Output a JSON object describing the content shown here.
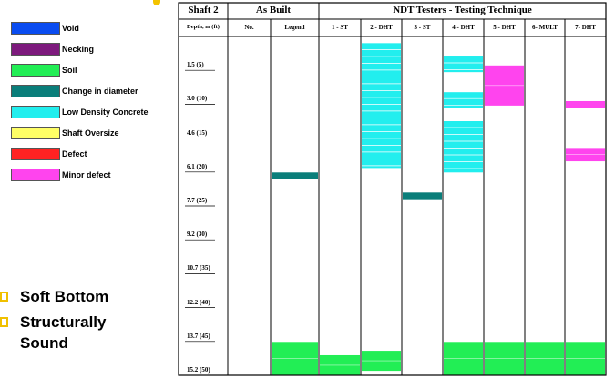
{
  "legend": [
    {
      "label": "Void",
      "color": "#0a4cf0"
    },
    {
      "label": "Necking",
      "color": "#7d1a7d"
    },
    {
      "label": "Soil",
      "color": "#22ee55"
    },
    {
      "label": "Change in diameter",
      "color": "#0a7e7a"
    },
    {
      "label": "Low Density Concrete",
      "color": "#22eeee"
    },
    {
      "label": "Shaft Oversize",
      "color": "#ffff66"
    },
    {
      "label": "Defect",
      "color": "#ff2222"
    },
    {
      "label": "Minor defect",
      "color": "#ff44ee"
    }
  ],
  "bullets": [
    "Soft Bottom",
    "Structurally",
    "Sound"
  ],
  "table": {
    "shaft_header": "Shaft 2",
    "as_built_header": "As Built",
    "ndt_header": "NDT Testers - Testing Technique",
    "depth_header": "Depth, m (ft)",
    "no_header": "No.",
    "legend_header": "Legend",
    "technique_headers": [
      "1 - ST",
      "2 - DHT",
      "3 - ST",
      "4 - DHT",
      "5 - DHT",
      "6- MULT",
      "7- DHT"
    ],
    "depth_labels": [
      "1.5 (5)",
      "3.0 (10)",
      "4.6 (15)",
      "6.1 (20)",
      "7.7 (25)",
      "9.2 (30)",
      "10.7 (35)",
      "12.2 (40)",
      "13.7 (45)",
      "15.2 (50)"
    ]
  },
  "chart_data": {
    "type": "heatmap",
    "depth_unit": "m",
    "depth_range": [
      0,
      15.2
    ],
    "columns": [
      "Legend",
      "1 - ST",
      "2 - DHT",
      "3 - ST",
      "4 - DHT",
      "5 - DHT",
      "6- MULT",
      "7- DHT"
    ],
    "segments": [
      {
        "column": "Legend",
        "anomaly": "Change in diameter",
        "from": 6.1,
        "to": 6.4
      },
      {
        "column": "Legend",
        "anomaly": "Soil",
        "from": 13.7,
        "to": 15.2
      },
      {
        "column": "1 - ST",
        "anomaly": "Soil",
        "from": 14.3,
        "to": 15.2
      },
      {
        "column": "2 - DHT",
        "anomaly": "Low Density Concrete",
        "from": 0.3,
        "to": 5.9
      },
      {
        "column": "2 - DHT",
        "anomaly": "Soil",
        "from": 14.1,
        "to": 15.0
      },
      {
        "column": "3 - ST",
        "anomaly": "Change in diameter",
        "from": 7.0,
        "to": 7.3
      },
      {
        "column": "4 - DHT",
        "anomaly": "Low Density Concrete",
        "from": 0.9,
        "to": 1.6
      },
      {
        "column": "4 - DHT",
        "anomaly": "Low Density Concrete",
        "from": 2.5,
        "to": 3.2
      },
      {
        "column": "4 - DHT",
        "anomaly": "Low Density Concrete",
        "from": 3.8,
        "to": 6.1
      },
      {
        "column": "4 - DHT",
        "anomaly": "Soil",
        "from": 13.7,
        "to": 15.2
      },
      {
        "column": "5 - DHT",
        "anomaly": "Minor defect",
        "from": 1.3,
        "to": 3.1
      },
      {
        "column": "5 - DHT",
        "anomaly": "Soil",
        "from": 13.7,
        "to": 15.2
      },
      {
        "column": "6- MULT",
        "anomaly": "Soil",
        "from": 13.7,
        "to": 15.2
      },
      {
        "column": "7- DHT",
        "anomaly": "Minor defect",
        "from": 2.9,
        "to": 3.2
      },
      {
        "column": "7- DHT",
        "anomaly": "Minor defect",
        "from": 5.0,
        "to": 5.6
      },
      {
        "column": "7- DHT",
        "anomaly": "Soil",
        "from": 13.7,
        "to": 15.2
      }
    ]
  }
}
